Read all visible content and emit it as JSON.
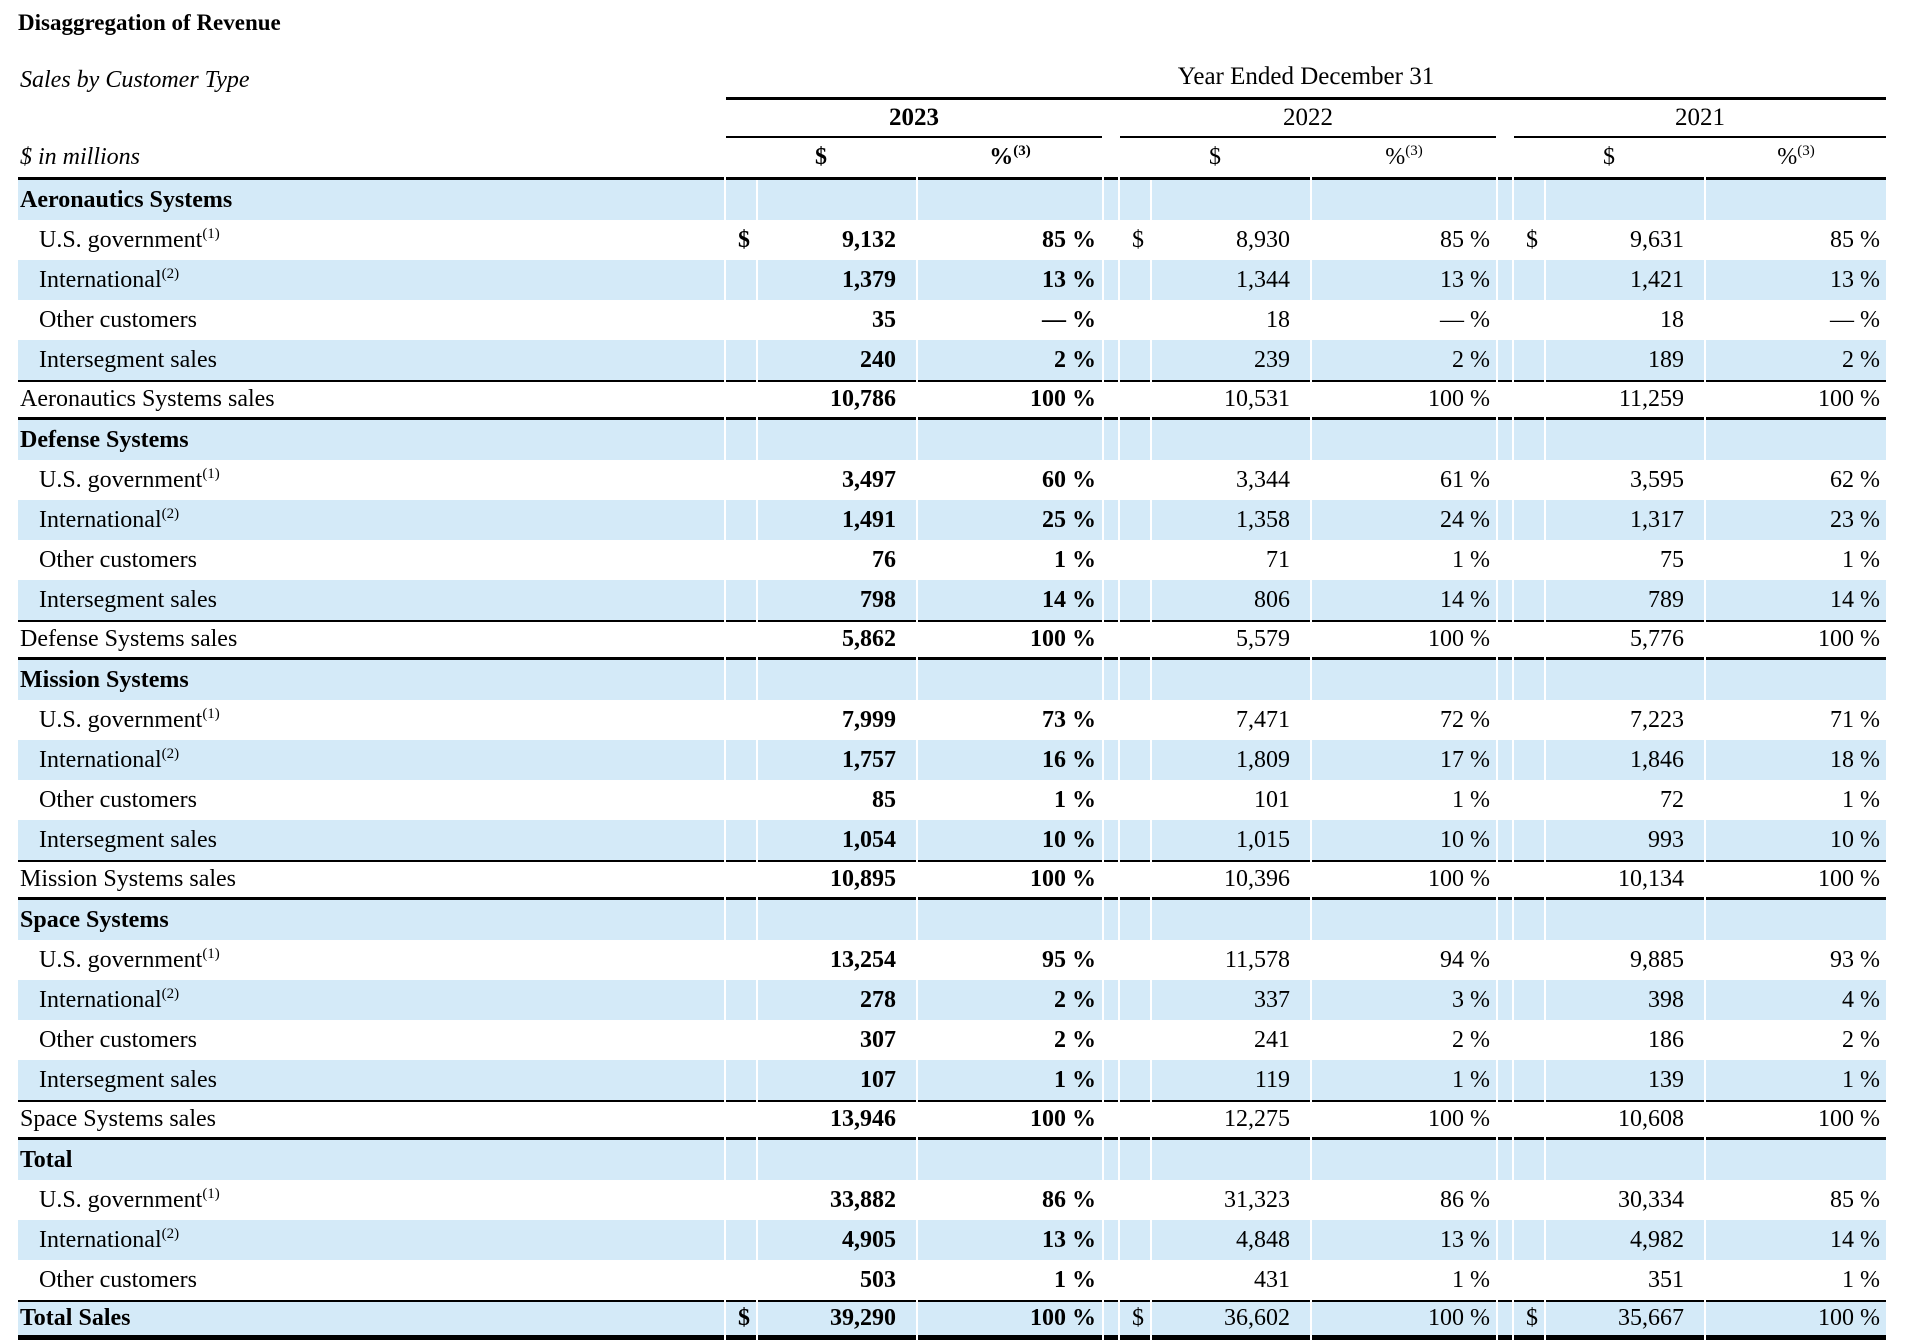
{
  "title": "Disaggregation of Revenue",
  "subtitle": "Sales by Customer Type",
  "units_label": "$ in millions",
  "header": {
    "year_ended_label": "Year Ended December 31",
    "years": [
      "2023",
      "2022",
      "2021"
    ],
    "dollar_label": "$",
    "percent_label": "%",
    "percent_footnote_marker": "(3)"
  },
  "colors": {
    "row_highlight": "#d4eaf8",
    "rule": "#000000"
  },
  "sections": [
    {
      "name": "Aeronautics Systems",
      "rows": [
        {
          "type": "section-header",
          "label": "Aeronautics Systems"
        },
        {
          "type": "data",
          "label": "U.S. government",
          "sup": "(1)",
          "cols": [
            "$",
            "9,132",
            "85 %",
            "$",
            "8,930",
            "85 %",
            "$",
            "9,631",
            "85 %"
          ]
        },
        {
          "type": "data",
          "label": "International",
          "sup": "(2)",
          "cols": [
            "",
            "1,379",
            "13 %",
            "",
            "1,344",
            "13 %",
            "",
            "1,421",
            "13 %"
          ]
        },
        {
          "type": "data",
          "label": "Other customers",
          "cols": [
            "",
            "35",
            "— %",
            "",
            "18",
            "— %",
            "",
            "18",
            "— %"
          ]
        },
        {
          "type": "data",
          "label": "Intersegment sales",
          "cols": [
            "",
            "240",
            "2 %",
            "",
            "239",
            "2 %",
            "",
            "189",
            "2 %"
          ]
        },
        {
          "type": "total",
          "label": "Aeronautics Systems sales",
          "cols": [
            "",
            "10,786",
            "100 %",
            "",
            "10,531",
            "100 %",
            "",
            "11,259",
            "100 %"
          ]
        }
      ]
    },
    {
      "name": "Defense Systems",
      "rows": [
        {
          "type": "section-header",
          "label": "Defense Systems"
        },
        {
          "type": "data",
          "label": "U.S. government",
          "sup": "(1)",
          "cols": [
            "",
            "3,497",
            "60 %",
            "",
            "3,344",
            "61 %",
            "",
            "3,595",
            "62 %"
          ]
        },
        {
          "type": "data",
          "label": "International",
          "sup": "(2)",
          "cols": [
            "",
            "1,491",
            "25 %",
            "",
            "1,358",
            "24 %",
            "",
            "1,317",
            "23 %"
          ]
        },
        {
          "type": "data",
          "label": "Other customers",
          "cols": [
            "",
            "76",
            "1 %",
            "",
            "71",
            "1 %",
            "",
            "75",
            "1 %"
          ]
        },
        {
          "type": "data",
          "label": "Intersegment sales",
          "cols": [
            "",
            "798",
            "14 %",
            "",
            "806",
            "14 %",
            "",
            "789",
            "14 %"
          ]
        },
        {
          "type": "total",
          "label": "Defense Systems sales",
          "cols": [
            "",
            "5,862",
            "100 %",
            "",
            "5,579",
            "100 %",
            "",
            "5,776",
            "100 %"
          ]
        }
      ]
    },
    {
      "name": "Mission Systems",
      "rows": [
        {
          "type": "section-header",
          "label": "Mission Systems"
        },
        {
          "type": "data",
          "label": "U.S. government",
          "sup": "(1)",
          "cols": [
            "",
            "7,999",
            "73 %",
            "",
            "7,471",
            "72 %",
            "",
            "7,223",
            "71 %"
          ]
        },
        {
          "type": "data",
          "label": "International",
          "sup": "(2)",
          "cols": [
            "",
            "1,757",
            "16 %",
            "",
            "1,809",
            "17 %",
            "",
            "1,846",
            "18 %"
          ]
        },
        {
          "type": "data",
          "label": "Other customers",
          "cols": [
            "",
            "85",
            "1 %",
            "",
            "101",
            "1 %",
            "",
            "72",
            "1 %"
          ]
        },
        {
          "type": "data",
          "label": "Intersegment sales",
          "cols": [
            "",
            "1,054",
            "10 %",
            "",
            "1,015",
            "10 %",
            "",
            "993",
            "10 %"
          ]
        },
        {
          "type": "total",
          "label": "Mission Systems sales",
          "cols": [
            "",
            "10,895",
            "100 %",
            "",
            "10,396",
            "100 %",
            "",
            "10,134",
            "100 %"
          ]
        }
      ]
    },
    {
      "name": "Space Systems",
      "rows": [
        {
          "type": "section-header",
          "label": "Space Systems"
        },
        {
          "type": "data",
          "label": "U.S. government",
          "sup": "(1)",
          "cols": [
            "",
            "13,254",
            "95 %",
            "",
            "11,578",
            "94 %",
            "",
            "9,885",
            "93 %"
          ]
        },
        {
          "type": "data",
          "label": "International",
          "sup": "(2)",
          "cols": [
            "",
            "278",
            "2 %",
            "",
            "337",
            "3 %",
            "",
            "398",
            "4 %"
          ]
        },
        {
          "type": "data",
          "label": "Other customers",
          "cols": [
            "",
            "307",
            "2 %",
            "",
            "241",
            "2 %",
            "",
            "186",
            "2 %"
          ]
        },
        {
          "type": "data",
          "label": "Intersegment sales",
          "cols": [
            "",
            "107",
            "1 %",
            "",
            "119",
            "1 %",
            "",
            "139",
            "1 %"
          ]
        },
        {
          "type": "total",
          "label": "Space Systems sales",
          "cols": [
            "",
            "13,946",
            "100 %",
            "",
            "12,275",
            "100 %",
            "",
            "10,608",
            "100 %"
          ]
        }
      ]
    },
    {
      "name": "Total",
      "rows": [
        {
          "type": "section-header",
          "label": "Total"
        },
        {
          "type": "data",
          "label": "U.S. government",
          "sup": "(1)",
          "cols": [
            "",
            "33,882",
            "86 %",
            "",
            "31,323",
            "86 %",
            "",
            "30,334",
            "85 %"
          ]
        },
        {
          "type": "data",
          "label": "International",
          "sup": "(2)",
          "cols": [
            "",
            "4,905",
            "13 %",
            "",
            "4,848",
            "13 %",
            "",
            "4,982",
            "14 %"
          ]
        },
        {
          "type": "data",
          "label": "Other customers",
          "cols": [
            "",
            "503",
            "1 %",
            "",
            "431",
            "1 %",
            "",
            "351",
            "1 %"
          ]
        },
        {
          "type": "grand-total",
          "label": "Total Sales",
          "cols": [
            "$",
            "39,290",
            "100 %",
            "$",
            "36,602",
            "100 %",
            "$",
            "35,667",
            "100 %"
          ]
        }
      ]
    }
  ]
}
